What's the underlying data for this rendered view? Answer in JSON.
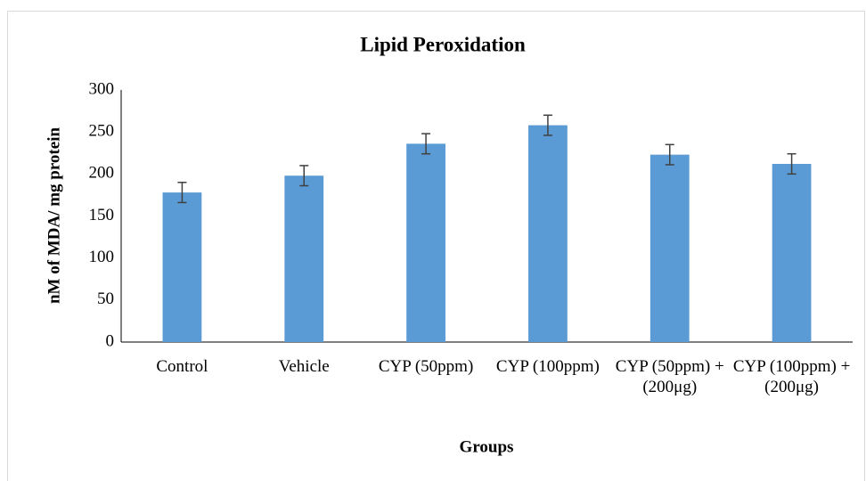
{
  "chart_data": {
    "type": "bar",
    "title": "Lipid Peroxidation",
    "x_label": "Groups",
    "y_label": "nM of MDA/ mg protein",
    "categories": [
      "Control",
      "Vehicle",
      "CYP (50ppm)",
      "CYP (100ppm)",
      "CYP (50ppm) + (200μg)",
      "CYP (100ppm) + (200μg)"
    ],
    "values": [
      178,
      198,
      236,
      258,
      223,
      212
    ],
    "errors": [
      12,
      12,
      12,
      12,
      12,
      12
    ],
    "color": "#5b9bd5",
    "error_color": "#404040",
    "ylim": [
      0,
      300
    ],
    "yticks": [
      0,
      50,
      100,
      150,
      200,
      250,
      300
    ],
    "grid": false
  }
}
